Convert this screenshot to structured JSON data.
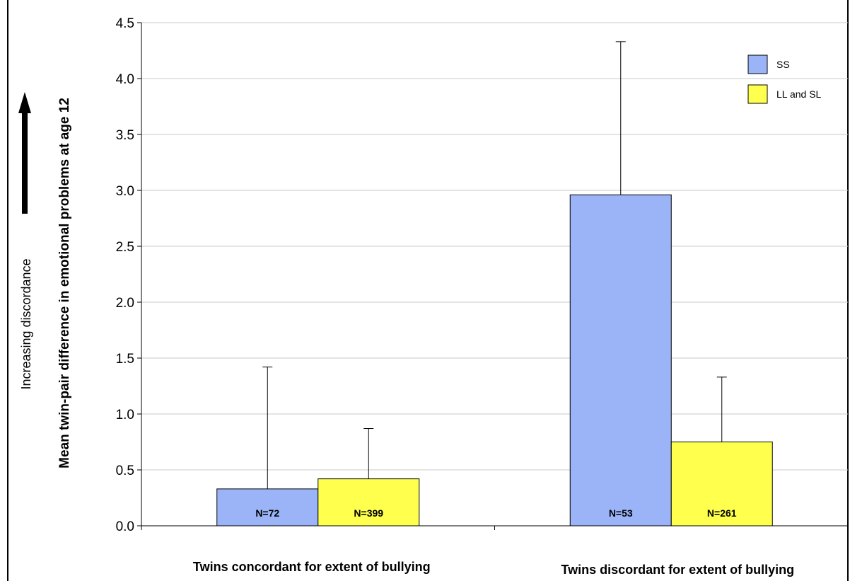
{
  "chart_data": {
    "type": "bar",
    "categories": [
      "Twins concordant for extent of bullying",
      "Twins discordant for extent of bullying"
    ],
    "series": [
      {
        "name": "SS",
        "color": "#9bb4f7",
        "values": [
          0.33,
          2.96
        ],
        "error_upper": [
          1.42,
          4.33
        ],
        "n_labels": [
          "N=72",
          "N=53"
        ]
      },
      {
        "name": "LL and SL",
        "color": "#ffff4d",
        "values": [
          0.42,
          0.75
        ],
        "error_upper": [
          0.87,
          1.33
        ],
        "n_labels": [
          "N=399",
          "N=261"
        ]
      }
    ],
    "ylabel": "Mean twin-pair difference in emotional problems at age 12",
    "side_label": "Increasing discordance",
    "ylim": [
      0,
      4.5
    ],
    "yticks": [
      "0.0",
      "0.5",
      "1.0",
      "1.5",
      "2.0",
      "2.5",
      "3.0",
      "3.5",
      "4.0",
      "4.5"
    ],
    "grid": true,
    "legend_position": "top-right"
  }
}
